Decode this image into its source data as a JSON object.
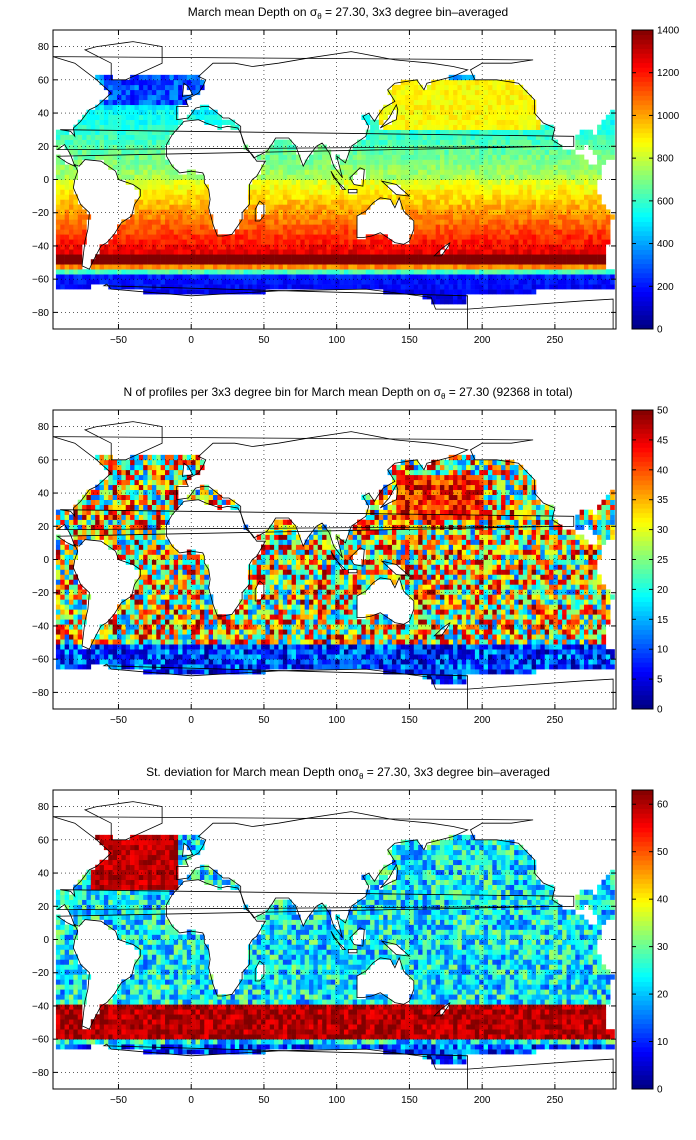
{
  "chart_data": [
    {
      "type": "heatmap",
      "title_parts": [
        "March mean Depth on ",
        "σ",
        "θ",
        " = 27.30, 3x3 degree bin–averaged"
      ],
      "xlim": [
        -95,
        292
      ],
      "ylim": [
        -90,
        90
      ],
      "x_ticks": [
        -50,
        0,
        50,
        100,
        150,
        200,
        250
      ],
      "y_ticks": [
        80,
        60,
        40,
        20,
        0,
        -20,
        -40,
        -60,
        -80
      ],
      "colorbar": {
        "min": 0,
        "max": 1400,
        "ticks": [
          0,
          200,
          400,
          600,
          800,
          1000,
          1200,
          1400
        ]
      },
      "colormap": "jet",
      "grid": true,
      "field": "depth"
    },
    {
      "type": "heatmap",
      "title_parts": [
        "N of profiles per 3x3 degree bin for March mean Depth on ",
        "σ",
        "θ",
        " = 27.30 (92368 in total)"
      ],
      "xlim": [
        -95,
        292
      ],
      "ylim": [
        -90,
        90
      ],
      "x_ticks": [
        -50,
        0,
        50,
        100,
        150,
        200,
        250
      ],
      "y_ticks": [
        80,
        60,
        40,
        20,
        0,
        -20,
        -40,
        -60,
        -80
      ],
      "colorbar": {
        "min": 0,
        "max": 50,
        "ticks": [
          0,
          5,
          10,
          15,
          20,
          25,
          30,
          35,
          40,
          45,
          50
        ]
      },
      "colormap": "jet",
      "grid": true,
      "field": "count"
    },
    {
      "type": "heatmap",
      "title_parts": [
        "St. deviation for March mean Depth on",
        "σ",
        "θ",
        " = 27.30, 3x3 degree bin–averaged"
      ],
      "xlim": [
        -95,
        292
      ],
      "ylim": [
        -90,
        90
      ],
      "x_ticks": [
        -50,
        0,
        50,
        100,
        150,
        200,
        250
      ],
      "y_ticks": [
        80,
        60,
        40,
        20,
        0,
        -20,
        -40,
        -60,
        -80
      ],
      "colorbar": {
        "min": 0,
        "max": 63,
        "ticks": [
          0,
          10,
          20,
          30,
          40,
          50,
          60
        ]
      },
      "colormap": "jet",
      "grid": true,
      "field": "std"
    }
  ]
}
